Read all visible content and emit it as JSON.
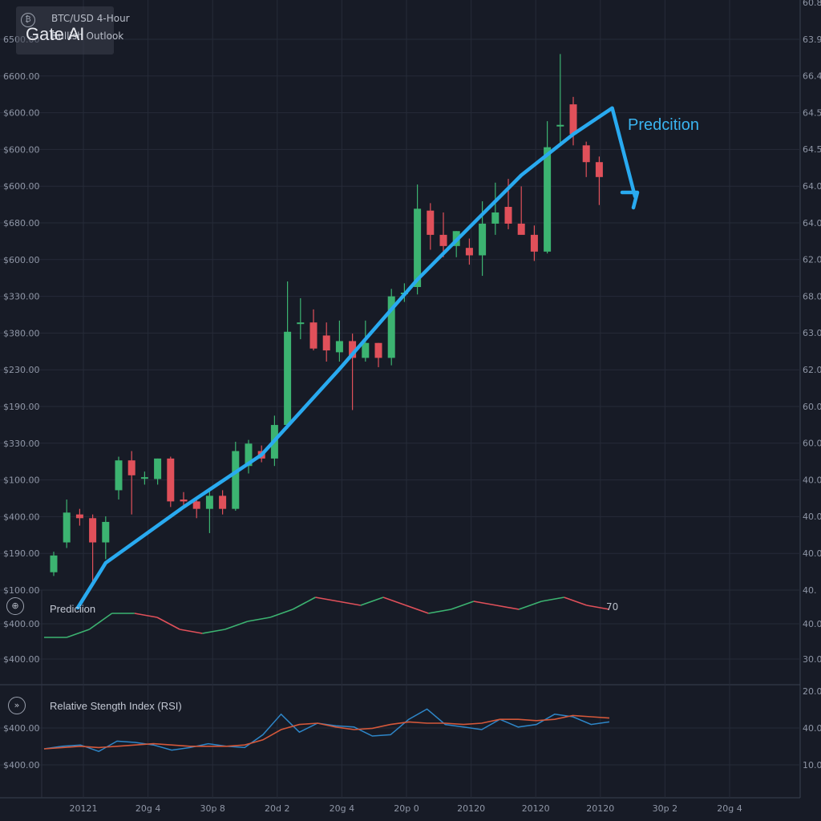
{
  "header": {
    "pair": "BTC/USD 4-Hour",
    "outlook": "Bullish Outlook",
    "brand": "Gate AI",
    "logo_icon": "bitcoin-icon"
  },
  "colors": {
    "background": "#171b26",
    "grid": "#262b38",
    "bull": "#3cb371",
    "bear": "#e0505a",
    "prediction": "#29aaf0",
    "rsi_fast": "#2e86c8",
    "rsi_slow": "#d4583a"
  },
  "main": {
    "prediction_label": "Predcition",
    "left_axis_labels": [
      "6500.00",
      "6600.00",
      "$600.00",
      "$600.00",
      "$600.00",
      "$680.00",
      "$600.00",
      "$330.00",
      "$380.00",
      "$230.00",
      "$190.00",
      "$330.00",
      "$100.00",
      "$400.00",
      "$190.00",
      "$100.00"
    ],
    "right_axis_labels": [
      "60.8",
      "63.9",
      "66.4",
      "64.5",
      "64.5",
      "64.0",
      "64.0",
      "62.0",
      "68.0",
      "63.0",
      "62.0",
      "60.0",
      "60.0",
      "40.0",
      "40.0",
      "40.0",
      "40."
    ]
  },
  "pane2": {
    "title": "Prediciion",
    "value_label": "70",
    "icon": "crosshair-icon",
    "left_axis_labels": [
      "$400.00",
      "$400.00"
    ],
    "right_axis_labels": [
      "40.0",
      "30.0"
    ]
  },
  "pane3": {
    "title": "Relative Stength Index (RSI)",
    "icon": "arrow-right-circle-icon",
    "left_axis_labels": [
      "$400.00",
      "$400.00"
    ],
    "right_axis_labels": [
      "20.0",
      "40.0",
      "10.0"
    ]
  },
  "x_axis_labels": [
    "20121",
    "20g 4",
    "30p 8",
    "20d 2",
    "20g 4",
    "20p 0",
    "20120",
    "20120",
    "20120",
    "30p 2",
    "20g 4"
  ],
  "chart_data": {
    "type": "candlestick",
    "title": "BTC/USD 4-Hour",
    "candles": [
      {
        "o": 0.35,
        "c": 0.8,
        "h": 0.9,
        "l": 0.25
      },
      {
        "o": 1.15,
        "c": 1.95,
        "h": 2.3,
        "l": 1.0
      },
      {
        "o": 1.9,
        "c": 1.8,
        "h": 2.05,
        "l": 1.6
      },
      {
        "o": 1.8,
        "c": 1.15,
        "h": 1.9,
        "l": 0.1
      },
      {
        "o": 1.15,
        "c": 1.7,
        "h": 1.85,
        "l": 0.7
      },
      {
        "o": 2.55,
        "c": 3.35,
        "h": 3.45,
        "l": 2.3
      },
      {
        "o": 3.35,
        "c": 2.95,
        "h": 3.6,
        "l": 1.9
      },
      {
        "o": 2.9,
        "c": 2.9,
        "h": 3.05,
        "l": 2.7
      },
      {
        "o": 2.85,
        "c": 3.4,
        "h": 3.4,
        "l": 2.7
      },
      {
        "o": 3.4,
        "c": 2.25,
        "h": 3.45,
        "l": 2.1
      },
      {
        "o": 2.3,
        "c": 2.25,
        "h": 2.5,
        "l": 2.1
      },
      {
        "o": 2.25,
        "c": 2.05,
        "h": 2.3,
        "l": 1.8
      },
      {
        "o": 2.05,
        "c": 2.4,
        "h": 2.55,
        "l": 1.4
      },
      {
        "o": 2.4,
        "c": 2.05,
        "h": 2.55,
        "l": 1.9
      },
      {
        "o": 2.05,
        "c": 3.6,
        "h": 3.85,
        "l": 2.0
      },
      {
        "o": 3.2,
        "c": 3.8,
        "h": 3.9,
        "l": 3.0
      },
      {
        "o": 3.6,
        "c": 3.4,
        "h": 3.75,
        "l": 3.3
      },
      {
        "o": 3.4,
        "c": 4.3,
        "h": 4.55,
        "l": 3.2
      },
      {
        "o": 4.3,
        "c": 6.8,
        "h": 8.15,
        "l": 4.2
      },
      {
        "o": 7.05,
        "c": 7.05,
        "h": 7.7,
        "l": 6.6
      },
      {
        "o": 7.05,
        "c": 6.35,
        "h": 7.4,
        "l": 6.3
      },
      {
        "o": 6.7,
        "c": 6.3,
        "h": 7.05,
        "l": 6.0
      },
      {
        "o": 6.25,
        "c": 6.55,
        "h": 7.1,
        "l": 6.0
      },
      {
        "o": 6.55,
        "c": 6.1,
        "h": 6.75,
        "l": 4.7
      },
      {
        "o": 6.1,
        "c": 6.5,
        "h": 7.1,
        "l": 6.0
      },
      {
        "o": 6.5,
        "c": 6.1,
        "h": 6.5,
        "l": 5.85
      },
      {
        "o": 6.1,
        "c": 7.75,
        "h": 7.95,
        "l": 5.9
      },
      {
        "o": 7.85,
        "c": 7.85,
        "h": 8.1,
        "l": 7.6
      },
      {
        "o": 8.0,
        "c": 10.1,
        "h": 10.75,
        "l": 7.8
      },
      {
        "o": 10.05,
        "c": 9.4,
        "h": 10.25,
        "l": 9.0
      },
      {
        "o": 9.4,
        "c": 9.1,
        "h": 10.0,
        "l": 8.8
      },
      {
        "o": 9.1,
        "c": 9.5,
        "h": 9.5,
        "l": 8.8
      },
      {
        "o": 9.05,
        "c": 8.85,
        "h": 9.3,
        "l": 8.6
      },
      {
        "o": 8.85,
        "c": 9.7,
        "h": 10.3,
        "l": 8.3
      },
      {
        "o": 9.7,
        "c": 10.0,
        "h": 10.8,
        "l": 9.4
      },
      {
        "o": 10.15,
        "c": 9.7,
        "h": 10.9,
        "l": 9.55
      },
      {
        "o": 9.7,
        "c": 9.4,
        "h": 10.7,
        "l": 9.5
      },
      {
        "o": 9.4,
        "c": 8.95,
        "h": 9.65,
        "l": 8.7
      },
      {
        "o": 8.95,
        "c": 11.75,
        "h": 12.45,
        "l": 8.9
      },
      {
        "o": 12.35,
        "c": 12.35,
        "h": 14.25,
        "l": 11.8
      },
      {
        "o": 12.9,
        "c": 12.1,
        "h": 13.1,
        "l": 11.8
      },
      {
        "o": 11.8,
        "c": 11.35,
        "h": 11.9,
        "l": 10.95
      },
      {
        "o": 11.35,
        "c": 10.95,
        "h": 11.5,
        "l": 10.2
      }
    ],
    "prediction_line": [
      [
        0,
        0
      ],
      [
        4,
        0.6
      ],
      [
        10,
        2.1
      ],
      [
        16,
        3.5
      ],
      [
        22,
        5.8
      ],
      [
        28,
        8.2
      ],
      [
        32,
        9.6
      ],
      [
        36,
        11.0
      ],
      [
        40,
        12.1
      ],
      [
        43,
        12.8
      ]
    ],
    "pane2_fast": [
      40,
      40,
      42,
      46,
      46,
      45,
      42,
      41,
      42,
      44,
      45,
      47,
      50,
      49,
      48,
      50,
      48,
      46,
      47,
      49,
      48,
      47,
      49,
      50,
      48,
      47
    ],
    "pane3_fast": [
      35,
      37,
      38,
      33,
      41,
      40,
      38,
      34,
      36,
      39,
      37,
      36,
      46,
      62,
      48,
      55,
      53,
      52,
      45,
      46,
      58,
      66,
      54,
      52,
      50,
      58,
      52,
      54,
      62,
      60,
      54,
      56
    ],
    "pane3_slow": [
      35,
      36,
      37,
      36,
      37,
      38,
      39,
      38,
      37,
      37,
      37,
      38,
      42,
      50,
      54,
      55,
      52,
      50,
      51,
      54,
      56,
      55,
      55,
      54,
      55,
      58,
      58,
      57,
      58,
      61,
      60,
      59
    ]
  }
}
